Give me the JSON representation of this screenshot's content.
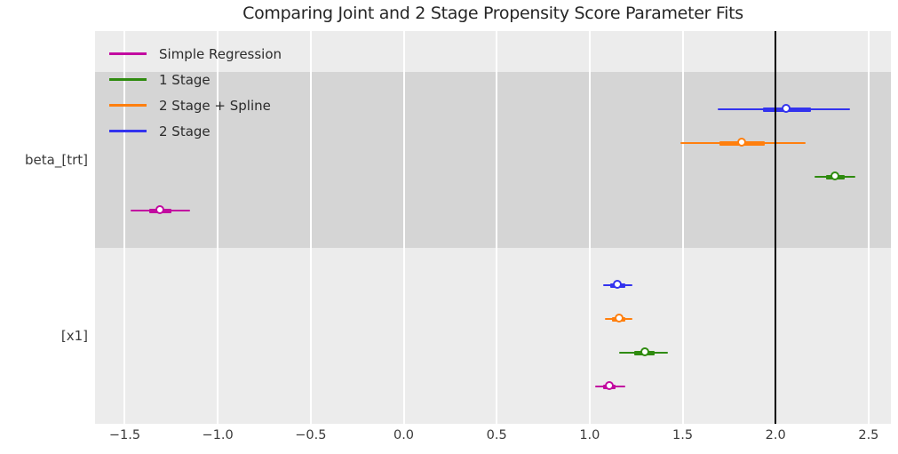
{
  "chart_data": {
    "type": "scatter",
    "subtype": "interval-forest-plot",
    "title": "Comparing Joint and 2 Stage Propensity Score Parameter Fits",
    "xlabel": "",
    "ylabel": "",
    "xlim": [
      -1.66,
      2.62
    ],
    "grid": "vertical white gridlines on gray panel",
    "reference_line_x": 2.0,
    "reference_line_color": "#000000",
    "panel_background": "#ececec",
    "shaded_band_background": "#d5d5d5",
    "x_ticks": [
      {
        "value": -1.5,
        "label": "−1.5"
      },
      {
        "value": -1.0,
        "label": "−1.0"
      },
      {
        "value": -0.5,
        "label": "−0.5"
      },
      {
        "value": 0.0,
        "label": "0.0"
      },
      {
        "value": 0.5,
        "label": "0.5"
      },
      {
        "value": 1.0,
        "label": "1.0"
      },
      {
        "value": 1.5,
        "label": "1.5"
      },
      {
        "value": 2.0,
        "label": "2.0"
      },
      {
        "value": 2.5,
        "label": "2.5"
      }
    ],
    "series": [
      {
        "name": "Simple Regression",
        "color": "#c20aa0"
      },
      {
        "name": "1 Stage",
        "color": "#2f8b0f"
      },
      {
        "name": "2 Stage + Spline",
        "color": "#ff7f0e"
      },
      {
        "name": "2 Stage",
        "color": "#3333ee"
      }
    ],
    "legend": {
      "position": "upper left",
      "entries": [
        "Simple Regression",
        "1 Stage",
        "2 Stage + Spline",
        "2 Stage"
      ]
    },
    "groups": [
      {
        "label": "beta_[trt]",
        "shaded": true,
        "points": [
          {
            "series": "2 Stage",
            "estimate": 2.06,
            "inner_interval": [
              1.93,
              2.19
            ],
            "outer_interval": [
              1.69,
              2.4
            ]
          },
          {
            "series": "2 Stage + Spline",
            "estimate": 1.82,
            "inner_interval": [
              1.7,
              1.94
            ],
            "outer_interval": [
              1.49,
              2.16
            ]
          },
          {
            "series": "1 Stage",
            "estimate": 2.32,
            "inner_interval": [
              2.27,
              2.37
            ],
            "outer_interval": [
              2.21,
              2.43
            ]
          },
          {
            "series": "Simple Regression",
            "estimate": -1.31,
            "inner_interval": [
              -1.37,
              -1.25
            ],
            "outer_interval": [
              -1.47,
              -1.15
            ]
          }
        ]
      },
      {
        "label": "[x1]",
        "shaded": false,
        "points": [
          {
            "series": "2 Stage",
            "estimate": 1.15,
            "inner_interval": [
              1.11,
              1.19
            ],
            "outer_interval": [
              1.07,
              1.23
            ]
          },
          {
            "series": "2 Stage + Spline",
            "estimate": 1.16,
            "inner_interval": [
              1.12,
              1.19
            ],
            "outer_interval": [
              1.08,
              1.23
            ]
          },
          {
            "series": "1 Stage",
            "estimate": 1.3,
            "inner_interval": [
              1.24,
              1.35
            ],
            "outer_interval": [
              1.16,
              1.42
            ]
          },
          {
            "series": "Simple Regression",
            "estimate": 1.11,
            "inner_interval": [
              1.07,
              1.14
            ],
            "outer_interval": [
              1.03,
              1.19
            ]
          }
        ]
      }
    ]
  }
}
